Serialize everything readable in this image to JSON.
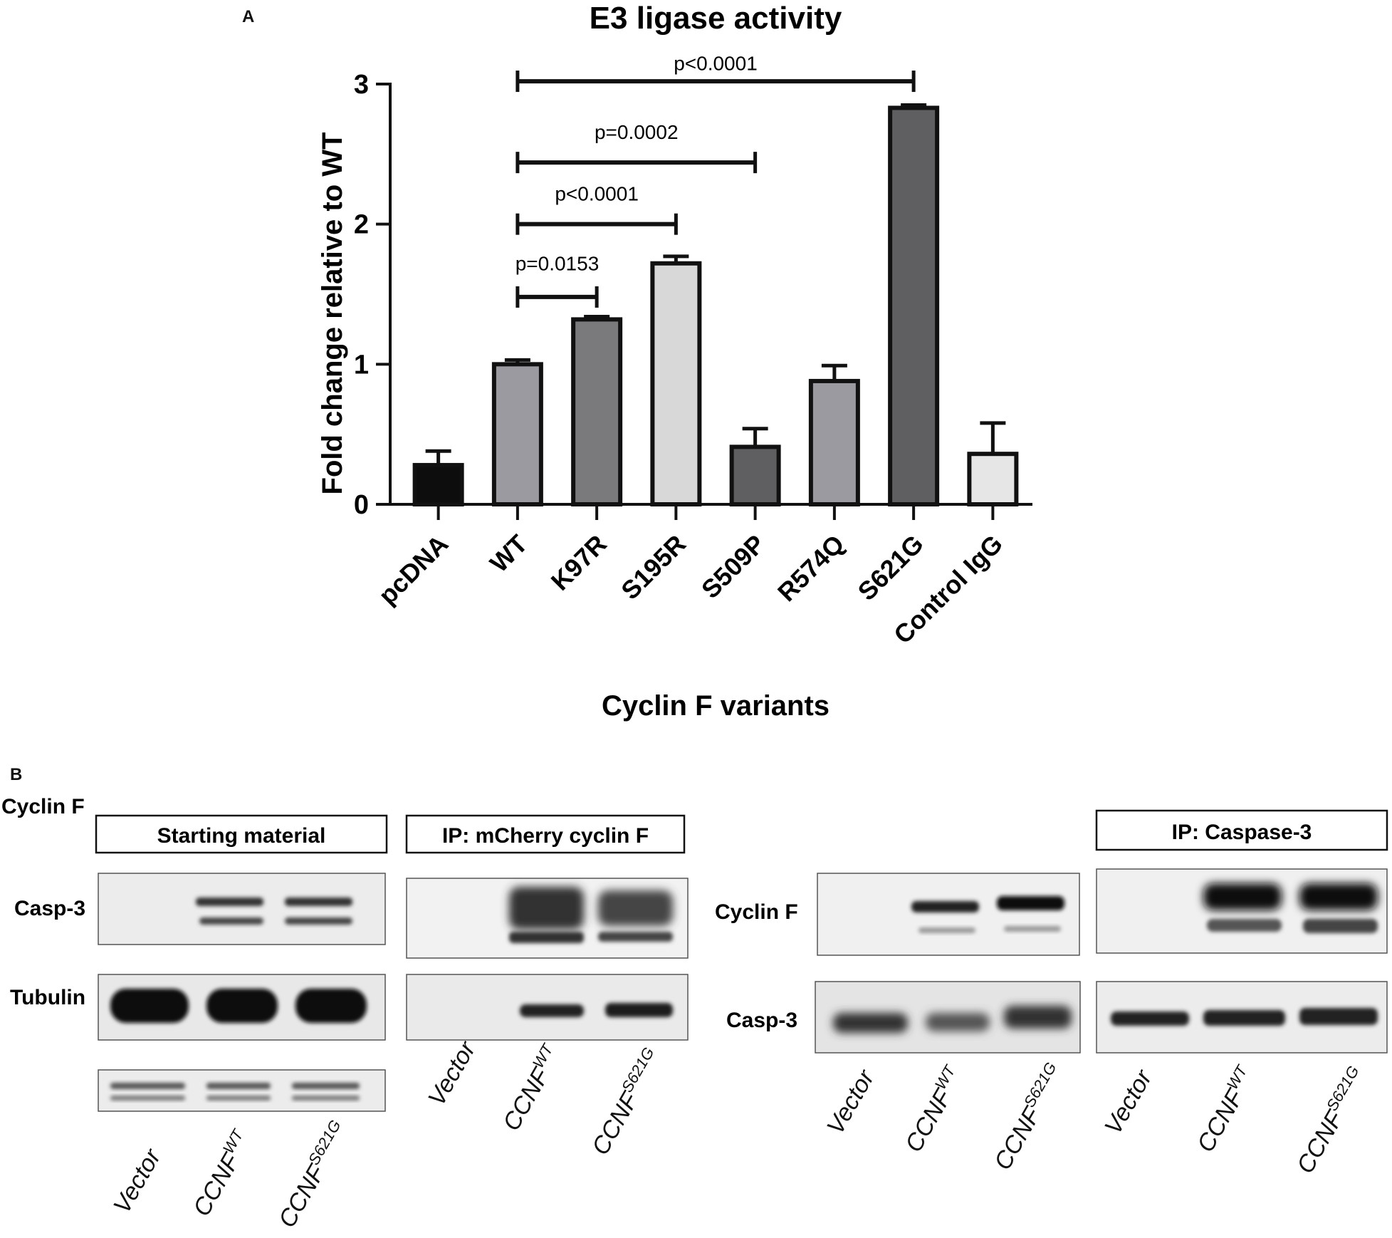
{
  "panel_a_label": "A",
  "panel_b_label": "B",
  "chart_data": {
    "type": "bar",
    "title": "E3 ligase activity",
    "xlabel": "Cyclin F variants",
    "ylabel": "Fold change relative to WT",
    "ylim": [
      0,
      3
    ],
    "yticks": [
      "0",
      "1",
      "2",
      "3"
    ],
    "categories": [
      "pcDNA",
      "WT",
      "K97R",
      "S195R",
      "S509P",
      "R574Q",
      "S621G",
      "Control IgG"
    ],
    "values": [
      0.28,
      1.0,
      1.32,
      1.72,
      0.41,
      0.88,
      2.83,
      0.36
    ],
    "errors": [
      0.1,
      0.03,
      0.02,
      0.05,
      0.13,
      0.11,
      0.02,
      0.22
    ],
    "bar_colors": [
      "#0d0d0d",
      "#9a9aa0",
      "#7a7a7d",
      "#d8d8d8",
      "#5f5f62",
      "#9a9aa0",
      "#5f5f62",
      "#e6e6e6"
    ],
    "comparisons": [
      {
        "from": "WT",
        "to": "K97R",
        "label": "p=0.0153"
      },
      {
        "from": "WT",
        "to": "S195R",
        "label": "p<0.0001"
      },
      {
        "from": "WT",
        "to": "S509P",
        "label": "p=0.0002"
      },
      {
        "from": "WT",
        "to": "S621G",
        "label": "p<0.0001"
      }
    ],
    "grid": false,
    "legend": "none"
  },
  "blots": {
    "starting_material": {
      "header": "Starting material",
      "rows": [
        "Cyclin F",
        "Casp-3",
        "Tubulin"
      ],
      "lanes": [
        {
          "base": "Vector",
          "sup": ""
        },
        {
          "base": "CCNF",
          "sup": "WT"
        },
        {
          "base": "CCNF",
          "sup": "S621G"
        }
      ]
    },
    "ip_mcherry": {
      "header": "IP: mCherry cyclin F",
      "lanes": [
        {
          "base": "Vector",
          "sup": ""
        },
        {
          "base": "CCNF",
          "sup": "WT"
        },
        {
          "base": "CCNF",
          "sup": "S621G"
        }
      ]
    },
    "right_input": {
      "rows": [
        "Cyclin F",
        "Casp-3"
      ],
      "lanes": [
        {
          "base": "Vector",
          "sup": ""
        },
        {
          "base": "CCNF",
          "sup": "WT"
        },
        {
          "base": "CCNF",
          "sup": "S621G"
        }
      ]
    },
    "ip_caspase": {
      "header": "IP: Caspase-3",
      "lanes": [
        {
          "base": "Vector",
          "sup": ""
        },
        {
          "base": "CCNF",
          "sup": "WT"
        },
        {
          "base": "CCNF",
          "sup": "S621G"
        }
      ]
    }
  }
}
